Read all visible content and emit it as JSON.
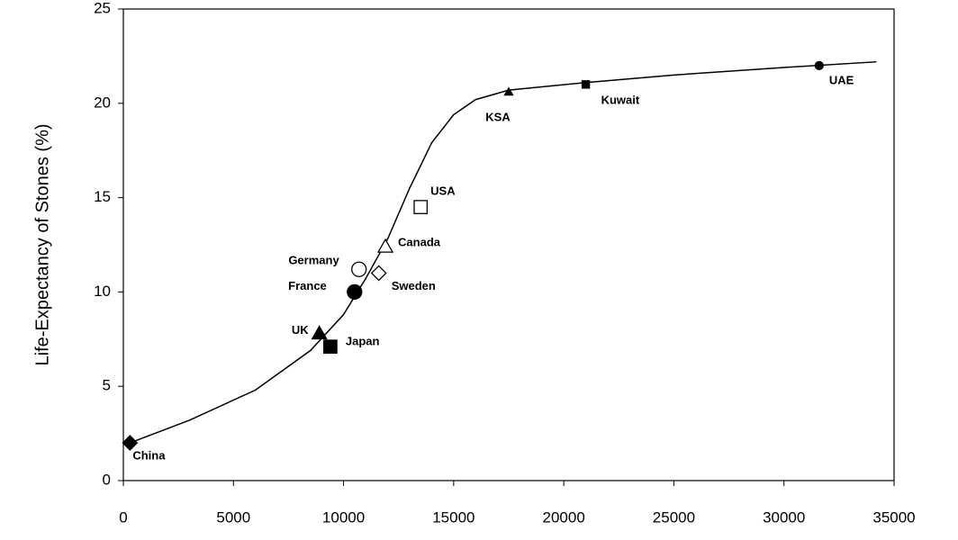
{
  "chart_data": {
    "type": "scatter",
    "y_label": "Life-Expectancy of Stones (%)",
    "xlim": [
      0,
      35000
    ],
    "xticks": [
      0,
      5000,
      10000,
      15000,
      20000,
      25000,
      30000,
      35000
    ],
    "ylim": [
      0,
      25
    ],
    "yticks": [
      0,
      5,
      10,
      15,
      20,
      25
    ],
    "color": "#000000",
    "points": [
      {
        "label": "China",
        "x": 300,
        "y": 2.0,
        "marker": "diamond",
        "filled": true,
        "size": "large"
      },
      {
        "label": "UK",
        "x": 8900,
        "y": 7.8,
        "marker": "triangle",
        "filled": true,
        "size": "large"
      },
      {
        "label": "Japan",
        "x": 9400,
        "y": 7.1,
        "marker": "square",
        "filled": true,
        "size": "large"
      },
      {
        "label": "France",
        "x": 10500,
        "y": 10.0,
        "marker": "circle",
        "filled": true,
        "size": "large"
      },
      {
        "label": "Germany",
        "x": 10700,
        "y": 11.2,
        "marker": "circle",
        "filled": false,
        "size": "large"
      },
      {
        "label": "Sweden",
        "x": 11600,
        "y": 11.0,
        "marker": "diamond",
        "filled": false,
        "size": "large"
      },
      {
        "label": "Canada",
        "x": 11900,
        "y": 12.4,
        "marker": "triangle",
        "filled": false,
        "size": "large"
      },
      {
        "label": "USA",
        "x": 13500,
        "y": 14.5,
        "marker": "square",
        "filled": false,
        "size": "large"
      },
      {
        "label": "KSA",
        "x": 17500,
        "y": 20.6,
        "marker": "triangle",
        "filled": true,
        "size": "small"
      },
      {
        "label": "Kuwait",
        "x": 21000,
        "y": 21.0,
        "marker": "square",
        "filled": true,
        "size": "small"
      },
      {
        "label": "UAE",
        "x": 31600,
        "y": 22.0,
        "marker": "circle",
        "filled": true,
        "size": "small"
      }
    ],
    "line": {
      "x": [
        300,
        3000,
        6000,
        8500,
        10000,
        11000,
        12000,
        13000,
        14000,
        15000,
        16000,
        17500,
        21000,
        25000,
        30000,
        34200
      ],
      "values": [
        2.0,
        3.2,
        4.8,
        6.9,
        8.8,
        10.7,
        12.8,
        15.5,
        17.9,
        19.4,
        20.2,
        20.7,
        21.1,
        21.5,
        21.9,
        22.2
      ]
    }
  }
}
